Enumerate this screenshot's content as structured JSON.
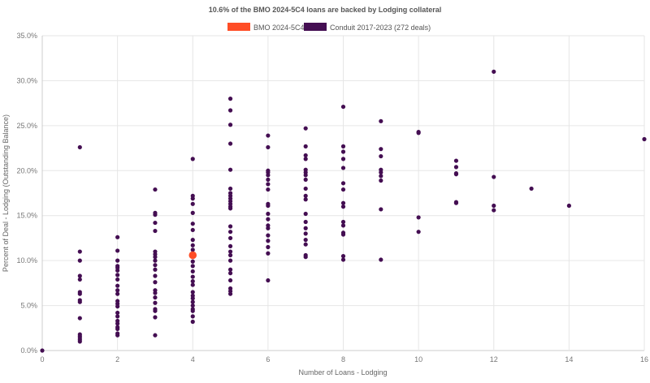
{
  "chart_data": {
    "type": "scatter",
    "title": "10.6% of the BMO 2024-5C4 loans are backed by Lodging collateral",
    "xlabel": "Number of Loans - Lodging",
    "ylabel": "Percent of Deal - Lodging (Outstanding Balance)",
    "xlim": [
      0,
      16
    ],
    "ylim": [
      0,
      35
    ],
    "xticks": [
      0,
      2,
      4,
      6,
      8,
      10,
      12,
      14,
      16
    ],
    "xtick_labels": [
      "0",
      "2",
      "4",
      "6",
      "8",
      "10",
      "12",
      "14",
      "16"
    ],
    "yticks": [
      0,
      5,
      10,
      15,
      20,
      25,
      30,
      35
    ],
    "ytick_labels": [
      "0.0%",
      "5.0%",
      "10.0%",
      "15.0%",
      "20.0%",
      "25.0%",
      "30.0%",
      "35.0%"
    ],
    "grid": true,
    "legend_position": "top-center",
    "series": [
      {
        "name": "BMO 2024-5C4",
        "color": "#ff4d26",
        "points": [
          [
            4,
            10.6
          ]
        ]
      },
      {
        "name": "Conduit 2017-2023 (272 deals)",
        "color": "#440e52",
        "points_by_x": {
          "0": [
            0
          ],
          "1": [
            22.6,
            11.0,
            10.0,
            8.3,
            7.9,
            6.5,
            6.3,
            5.6,
            5.4,
            3.6,
            1.8,
            1.6,
            1.4,
            1.2,
            1.0
          ],
          "2": [
            12.6,
            11.1,
            10.0,
            9.4,
            9.2,
            8.9,
            8.4,
            7.9,
            7.2,
            6.7,
            6.3,
            5.5,
            5.2,
            4.9,
            4.2,
            3.8,
            3.3,
            3.0,
            2.6,
            2.4,
            1.9,
            1.7
          ],
          "3": [
            17.9,
            15.3,
            15.1,
            14.2,
            13.3,
            11.0,
            10.7,
            10.4,
            10.0,
            9.5,
            9.0,
            8.3,
            7.6,
            6.7,
            6.4,
            5.9,
            5.3,
            4.6,
            4.4,
            3.7,
            1.7
          ],
          "4": [
            21.3,
            17.2,
            16.9,
            16.3,
            15.3,
            14.1,
            13.4,
            12.3,
            11.7,
            11.2,
            9.9,
            9.4,
            8.8,
            8.2,
            7.7,
            7.3,
            6.5,
            6.1,
            5.8,
            5.4,
            5.0,
            4.6,
            4.4,
            3.8,
            3.2
          ],
          "5": [
            28.0,
            26.7,
            25.1,
            23.0,
            20.1,
            18.0,
            17.5,
            17.2,
            16.9,
            16.6,
            16.3,
            16.0,
            15.8,
            13.8,
            13.2,
            12.5,
            11.6,
            11.0,
            10.6,
            10.0,
            9.0,
            8.6,
            7.8,
            6.9,
            6.6,
            6.3
          ],
          "6": [
            23.9,
            22.6,
            20.0,
            19.8,
            19.5,
            19.0,
            18.5,
            17.9,
            16.3,
            16.1,
            15.2,
            14.6,
            13.9,
            13.6,
            12.8,
            12.2,
            11.5,
            10.8,
            7.8
          ],
          "7": [
            24.7,
            22.7,
            21.7,
            21.3,
            20.1,
            19.8,
            19.5,
            19.0,
            18.0,
            17.2,
            16.8,
            15.2,
            14.3,
            13.6,
            13.0,
            12.3,
            11.8,
            10.6,
            10.4
          ],
          "8": [
            27.1,
            22.7,
            22.1,
            21.3,
            20.3,
            18.6,
            17.9,
            16.4,
            16.0,
            14.3,
            13.9,
            13.1,
            12.9,
            10.5,
            10.1
          ],
          "9": [
            25.5,
            22.4,
            21.6,
            20.1,
            19.8,
            19.4,
            18.9,
            15.7,
            10.1
          ],
          "10": [
            24.3,
            24.2,
            14.8,
            13.2
          ],
          "11": [
            21.1,
            20.4,
            19.7,
            19.6,
            16.5,
            16.4
          ],
          "12": [
            31.0,
            19.3,
            16.1,
            15.6
          ],
          "13": [
            18.0
          ],
          "14": [
            16.1
          ],
          "16": [
            23.5
          ]
        }
      }
    ]
  }
}
